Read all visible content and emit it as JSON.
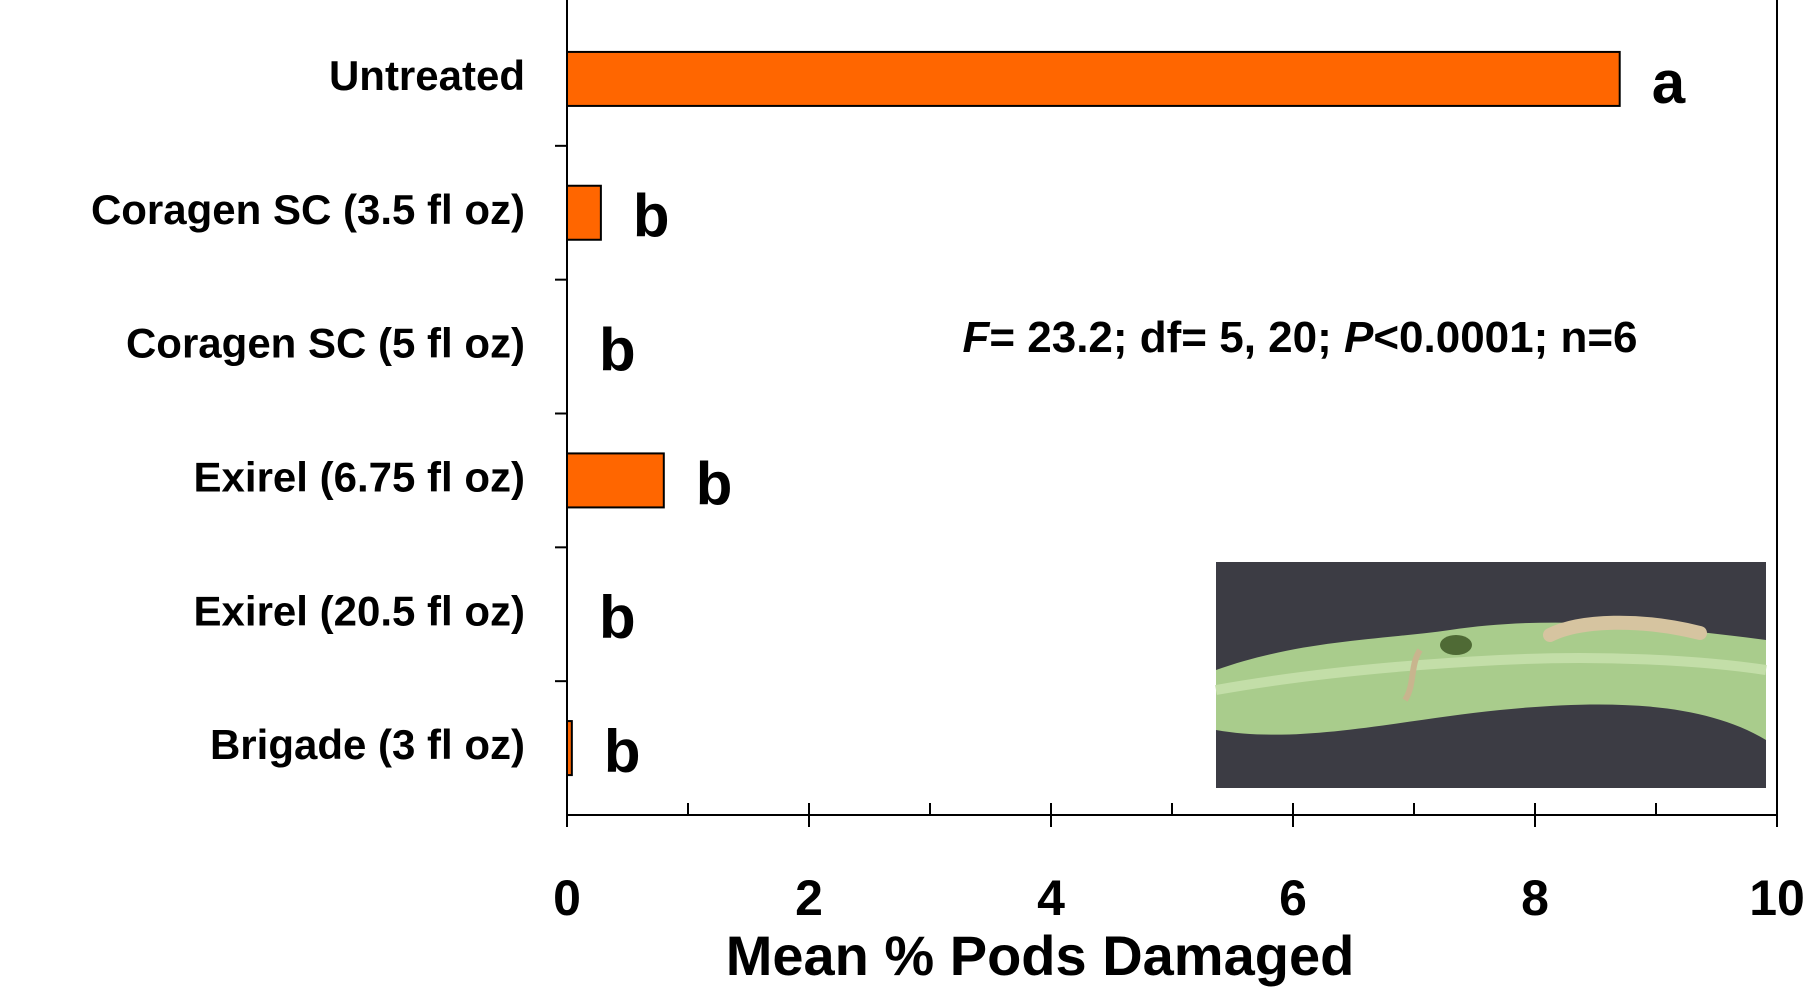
{
  "chart_data": {
    "type": "bar",
    "orientation": "horizontal",
    "categories": [
      "Untreated",
      "Coragen SC (3.5 fl oz)",
      "Coragen SC (5 fl oz)",
      "Exirel (6.75 fl oz)",
      "Exirel (20.5 fl oz)",
      "Brigade (3 fl oz)"
    ],
    "values": [
      8.7,
      0.28,
      0,
      0.8,
      0,
      0.04
    ],
    "significance_letters": [
      "a",
      "b",
      "b",
      "b",
      "b",
      "b"
    ],
    "color": "#ff6600",
    "xlim": [
      0,
      10
    ],
    "xticks": [
      0,
      2,
      4,
      6,
      8,
      10
    ],
    "minor_xticks": [
      1,
      3,
      5,
      7,
      9
    ],
    "xlabel": "Mean % Pods Damaged",
    "annotation": [
      "F",
      "= 23.2; df= 5, 20; ",
      "P",
      "<0.0001; n=6"
    ]
  }
}
